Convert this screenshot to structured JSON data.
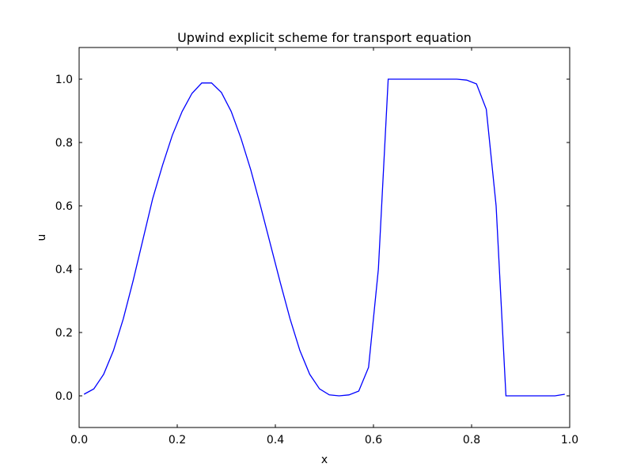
{
  "chart_data": {
    "type": "line",
    "title": "Upwind explicit scheme for transport equation",
    "xlabel": "x",
    "ylabel": "u",
    "xlim": [
      0.0,
      1.0
    ],
    "ylim": [
      -0.1,
      1.1
    ],
    "xticks": [
      0.0,
      0.2,
      0.4,
      0.6,
      0.8,
      1.0
    ],
    "xtick_labels": [
      "0.0",
      "0.2",
      "0.4",
      "0.6",
      "0.8",
      "1.0"
    ],
    "yticks": [
      0.0,
      0.2,
      0.4,
      0.6,
      0.8,
      1.0
    ],
    "ytick_labels": [
      "0.0",
      "0.2",
      "0.4",
      "0.6",
      "0.8",
      "1.0"
    ],
    "grid": false,
    "series": [
      {
        "color": "#0000ff",
        "x": [
          0.01,
          0.03,
          0.05,
          0.07,
          0.09,
          0.11,
          0.13,
          0.15,
          0.17,
          0.19,
          0.21,
          0.23,
          0.25,
          0.27,
          0.29,
          0.31,
          0.33,
          0.35,
          0.37,
          0.39,
          0.41,
          0.43,
          0.45,
          0.47,
          0.49,
          0.51,
          0.53,
          0.55,
          0.57,
          0.59,
          0.61,
          0.63,
          0.65,
          0.67,
          0.69,
          0.71,
          0.73,
          0.75,
          0.77,
          0.79,
          0.81,
          0.83,
          0.85,
          0.87,
          0.89,
          0.91,
          0.93,
          0.95,
          0.97,
          0.99
        ],
        "y": [
          0.005,
          0.022,
          0.068,
          0.143,
          0.243,
          0.363,
          0.493,
          0.623,
          0.728,
          0.823,
          0.898,
          0.955,
          0.988,
          0.988,
          0.958,
          0.898,
          0.813,
          0.713,
          0.598,
          0.478,
          0.358,
          0.243,
          0.143,
          0.068,
          0.022,
          0.003,
          0.0,
          0.003,
          0.015,
          0.09,
          0.4,
          1.0,
          1.0,
          1.0,
          1.0,
          1.0,
          1.0,
          1.0,
          1.0,
          0.997,
          0.985,
          0.905,
          0.6,
          0.0,
          0.0,
          0.0,
          0.0,
          0.0,
          0.0,
          0.005
        ]
      }
    ]
  }
}
